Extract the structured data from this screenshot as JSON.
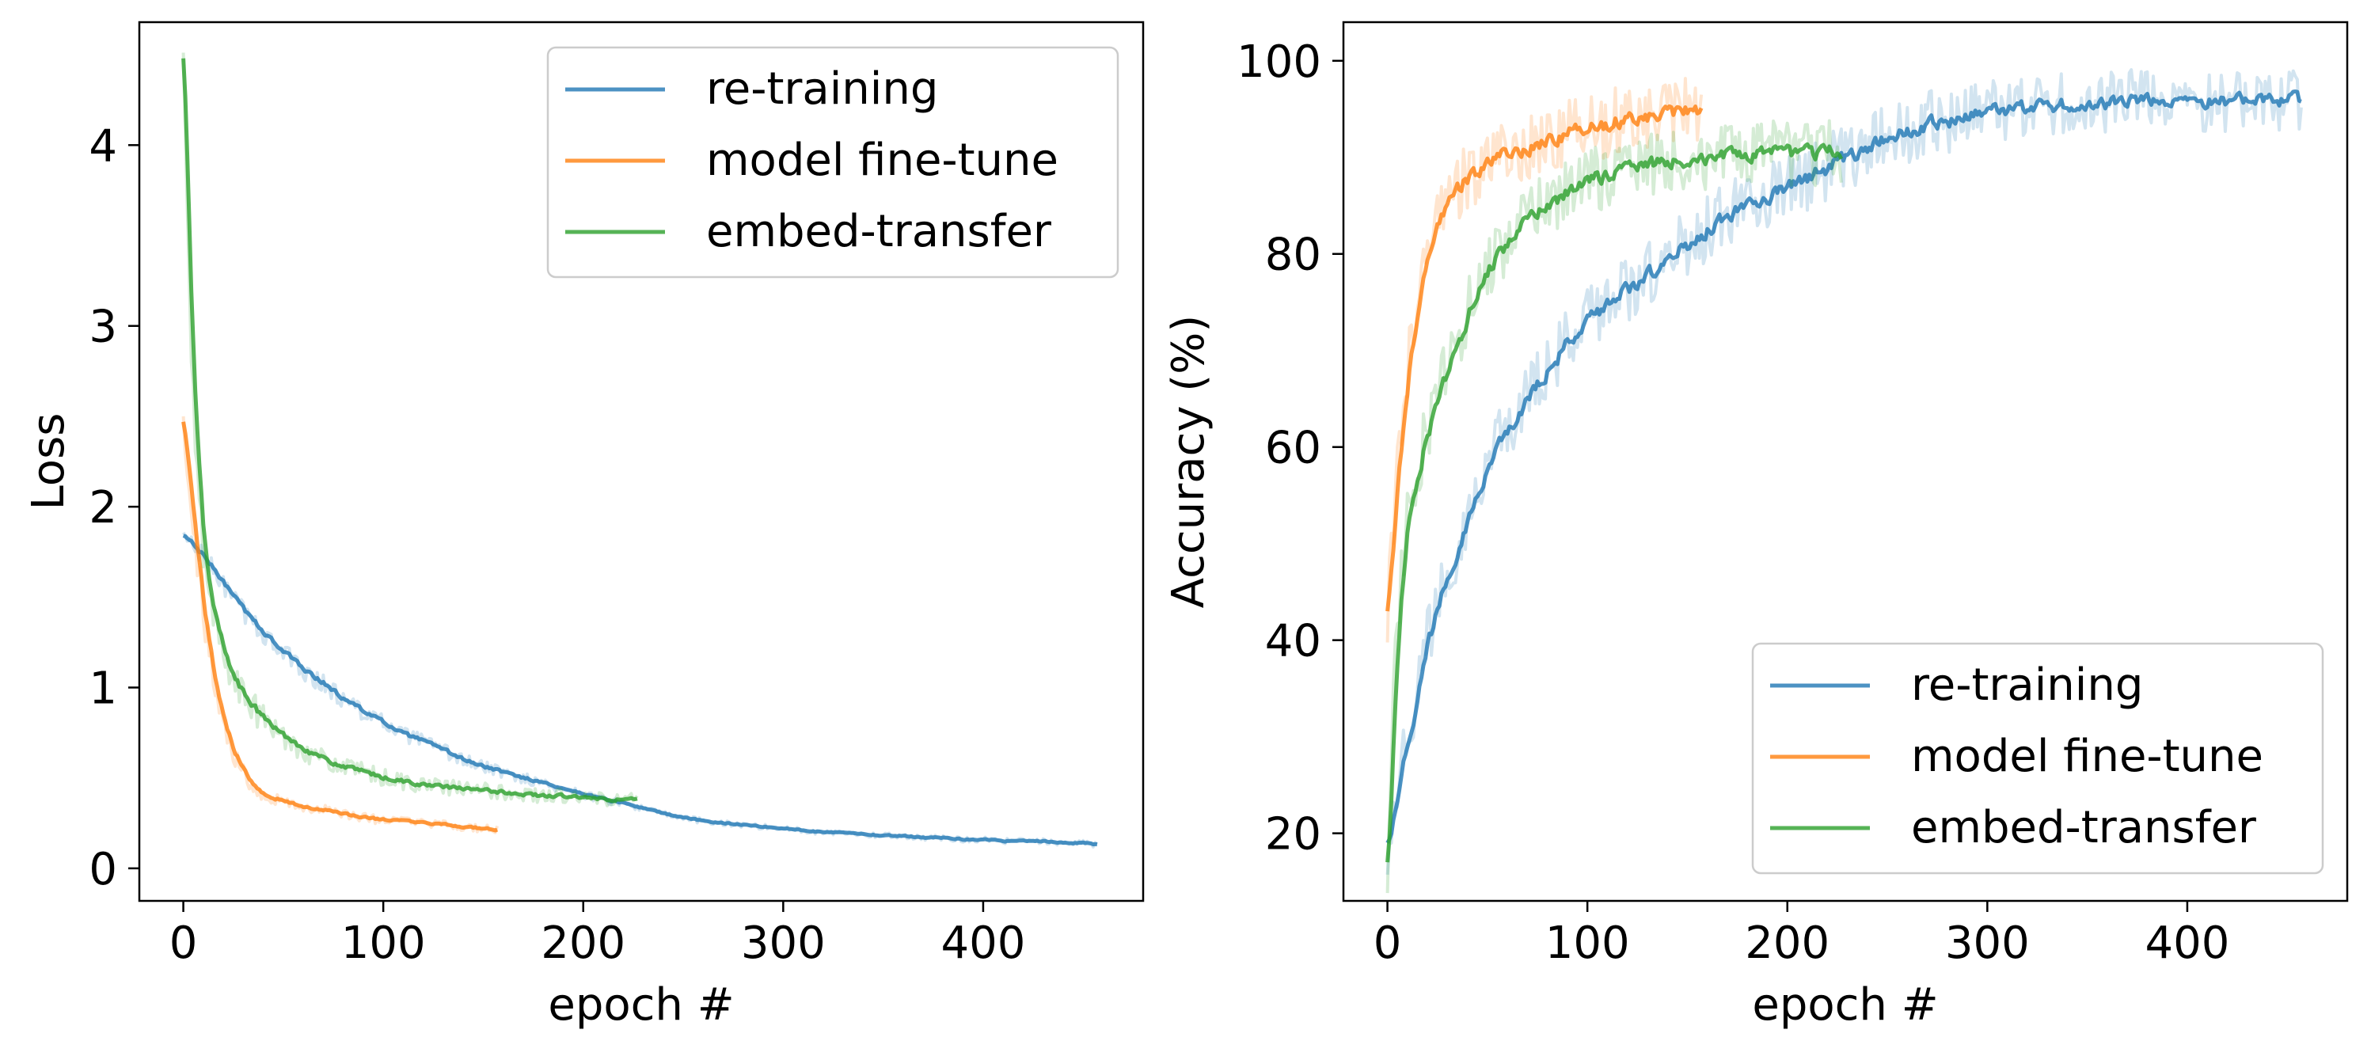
{
  "chart_data": [
    {
      "type": "line",
      "title": "",
      "xlabel": "epoch #",
      "ylabel": "Loss",
      "xlim": [
        -22,
        480
      ],
      "ylim": [
        -0.18,
        4.68
      ],
      "xticks": [
        0,
        100,
        200,
        300,
        400
      ],
      "yticks": [
        0,
        1,
        2,
        3,
        4
      ],
      "legend": "top-right",
      "grid": false,
      "smoothed_and_raw": true,
      "series": [
        {
          "name": "re-training",
          "color": "#1f77b4",
          "x": [
            0,
            10,
            20,
            30,
            40,
            50,
            60,
            70,
            80,
            90,
            100,
            110,
            120,
            130,
            140,
            150,
            160,
            170,
            180,
            190,
            200,
            210,
            220,
            230,
            240,
            250,
            260,
            270,
            280,
            290,
            300,
            310,
            320,
            330,
            340,
            350,
            360,
            370,
            380,
            390,
            400,
            410,
            420,
            430,
            440,
            450,
            457
          ],
          "values": [
            1.84,
            1.72,
            1.57,
            1.42,
            1.3,
            1.19,
            1.1,
            1.02,
            0.93,
            0.87,
            0.8,
            0.74,
            0.7,
            0.65,
            0.6,
            0.56,
            0.53,
            0.5,
            0.47,
            0.44,
            0.41,
            0.38,
            0.36,
            0.33,
            0.3,
            0.28,
            0.26,
            0.25,
            0.24,
            0.23,
            0.22,
            0.21,
            0.2,
            0.2,
            0.19,
            0.18,
            0.18,
            0.17,
            0.17,
            0.16,
            0.16,
            0.15,
            0.15,
            0.15,
            0.14,
            0.14,
            0.13
          ],
          "noise": 0.06
        },
        {
          "name": "model fine-tune",
          "color": "#ff7f0e",
          "x": [
            0,
            3,
            6,
            10,
            15,
            20,
            25,
            30,
            35,
            40,
            50,
            60,
            70,
            80,
            90,
            100,
            110,
            120,
            130,
            140,
            150,
            157
          ],
          "values": [
            2.47,
            2.15,
            1.8,
            1.4,
            1.05,
            0.8,
            0.64,
            0.53,
            0.46,
            0.41,
            0.37,
            0.34,
            0.32,
            0.3,
            0.28,
            0.27,
            0.26,
            0.25,
            0.24,
            0.23,
            0.22,
            0.21
          ],
          "noise": 0.1
        },
        {
          "name": "embed-transfer",
          "color": "#2ca02c",
          "x": [
            0,
            2,
            4,
            7,
            10,
            13,
            16,
            20,
            25,
            30,
            40,
            50,
            60,
            70,
            80,
            90,
            100,
            110,
            120,
            130,
            140,
            150,
            160,
            170,
            180,
            190,
            200,
            210,
            220,
            227
          ],
          "values": [
            4.48,
            3.6,
            2.8,
            2.2,
            1.75,
            1.5,
            1.35,
            1.2,
            1.05,
            0.95,
            0.82,
            0.73,
            0.66,
            0.6,
            0.56,
            0.53,
            0.5,
            0.48,
            0.46,
            0.45,
            0.44,
            0.43,
            0.42,
            0.41,
            0.4,
            0.4,
            0.39,
            0.38,
            0.38,
            0.38
          ],
          "noise": 0.1
        }
      ]
    },
    {
      "type": "line",
      "title": "",
      "xlabel": "epoch #",
      "ylabel": "Accuracy (%)",
      "xlim": [
        -22,
        480
      ],
      "ylim": [
        13,
        104
      ],
      "xticks": [
        0,
        100,
        200,
        300,
        400
      ],
      "yticks": [
        20,
        40,
        60,
        80,
        100
      ],
      "legend": "bottom-right",
      "grid": false,
      "smoothed_and_raw": true,
      "series": [
        {
          "name": "re-training",
          "color": "#1f77b4",
          "x": [
            0,
            5,
            10,
            15,
            20,
            25,
            30,
            40,
            50,
            60,
            70,
            80,
            90,
            100,
            110,
            120,
            130,
            140,
            150,
            160,
            170,
            180,
            190,
            200,
            210,
            220,
            230,
            240,
            250,
            260,
            270,
            280,
            290,
            300,
            310,
            320,
            330,
            340,
            350,
            360,
            370,
            380,
            390,
            400,
            410,
            420,
            430,
            440,
            450,
            457
          ],
          "values": [
            19,
            25,
            30,
            35,
            40,
            44,
            47,
            53,
            58,
            62,
            65,
            68,
            71,
            73,
            75,
            76.5,
            78,
            79.5,
            81,
            82.5,
            84,
            85,
            86,
            87,
            88,
            89,
            90,
            91,
            92,
            92.8,
            93.3,
            93.8,
            94.2,
            94.6,
            95,
            95.2,
            95.3,
            95.4,
            95.5,
            95.5,
            95.6,
            95.7,
            95.8,
            95.8,
            95.9,
            95.9,
            96,
            96,
            96,
            96
          ],
          "noise": 3.5
        },
        {
          "name": "model fine-tune",
          "color": "#ff7f0e",
          "x": [
            0,
            3,
            6,
            10,
            15,
            20,
            25,
            30,
            35,
            40,
            50,
            60,
            70,
            80,
            90,
            100,
            110,
            120,
            130,
            140,
            150,
            157
          ],
          "values": [
            43,
            52,
            60,
            68,
            75,
            80,
            83,
            85.5,
            87,
            88,
            89.5,
            90.5,
            91,
            91.8,
            92.5,
            93,
            93.5,
            94,
            94.3,
            94.5,
            94.7,
            95
          ],
          "noise": 3.5
        },
        {
          "name": "embed-transfer",
          "color": "#2ca02c",
          "x": [
            0,
            3,
            6,
            10,
            15,
            20,
            25,
            30,
            35,
            40,
            50,
            60,
            70,
            80,
            90,
            100,
            110,
            120,
            130,
            140,
            150,
            160,
            170,
            180,
            190,
            200,
            210,
            220,
            227
          ],
          "values": [
            17,
            33,
            45,
            53,
            58,
            62,
            65,
            68,
            71,
            74,
            78.5,
            81.5,
            83.5,
            85,
            86.5,
            87.5,
            88.3,
            89,
            89.3,
            89.6,
            89.8,
            90,
            90.1,
            90.2,
            90.3,
            90.4,
            90.5,
            90.5,
            90.5
          ],
          "noise": 3.5
        }
      ]
    }
  ]
}
